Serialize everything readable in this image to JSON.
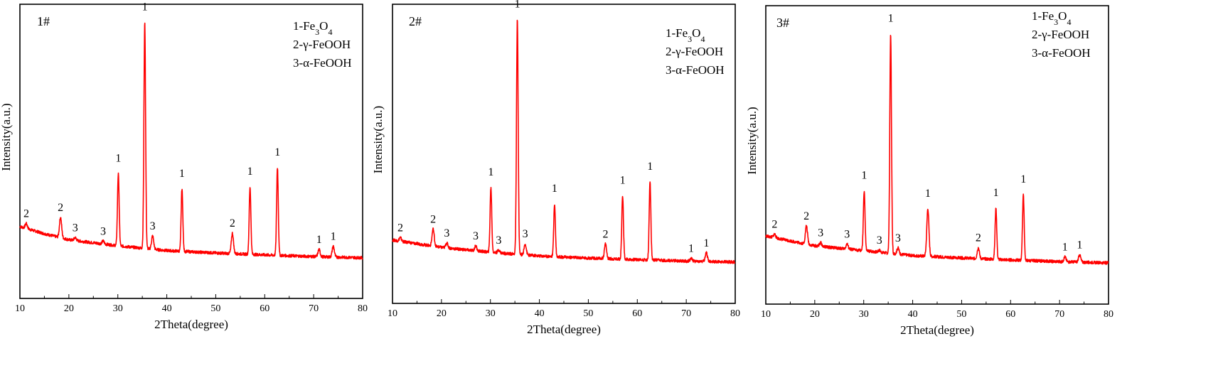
{
  "colors": {
    "pattern": "#ff0000",
    "frame": "#000000",
    "background": "#ffffff"
  },
  "chart_data": [
    {
      "type": "line",
      "panel_label": "1#",
      "xlabel": "2Theta(degree)",
      "ylabel": "Intensity(a.u.)",
      "xlim": [
        10,
        80
      ],
      "xticks": [
        "10",
        "20",
        "30",
        "40",
        "50",
        "60",
        "70",
        "80"
      ],
      "legend": [
        {
          "prefix": "1-Fe",
          "sub1": "3",
          "mid": "O",
          "sub2": "4"
        },
        {
          "prefix": "2-γ-FeOOH"
        },
        {
          "prefix": "3-α-FeOOH"
        }
      ],
      "background": [
        [
          10,
          0.14
        ],
        [
          15,
          0.11
        ],
        [
          20,
          0.085
        ],
        [
          30,
          0.06
        ],
        [
          40,
          0.04
        ],
        [
          50,
          0.03
        ],
        [
          60,
          0.022
        ],
        [
          70,
          0.015
        ],
        [
          80,
          0.01
        ]
      ],
      "peaks": [
        {
          "x": 11.3,
          "h": 0.02,
          "label": "2"
        },
        {
          "x": 18.3,
          "h": 0.085,
          "label": "2"
        },
        {
          "x": 21.3,
          "h": 0.012,
          "label": "3"
        },
        {
          "x": 27.0,
          "h": 0.012,
          "label": "3"
        },
        {
          "x": 30.1,
          "h": 0.3,
          "label": "1"
        },
        {
          "x": 35.5,
          "h": 0.94,
          "label": "1"
        },
        {
          "x": 37.1,
          "h": 0.055,
          "label": "3"
        },
        {
          "x": 43.1,
          "h": 0.26,
          "label": "1"
        },
        {
          "x": 53.4,
          "h": 0.085,
          "label": "2"
        },
        {
          "x": 57.0,
          "h": 0.28,
          "label": "1"
        },
        {
          "x": 62.6,
          "h": 0.365,
          "label": "1"
        },
        {
          "x": 71.1,
          "h": 0.03,
          "label": "1"
        },
        {
          "x": 74.0,
          "h": 0.045,
          "label": "1"
        }
      ]
    },
    {
      "type": "line",
      "panel_label": "2#",
      "xlabel": "2Theta(degree)",
      "ylabel": "Intensity(a.u.)",
      "xlim": [
        10,
        80
      ],
      "xticks": [
        "10",
        "20",
        "30",
        "40",
        "50",
        "60",
        "70",
        "80"
      ],
      "legend": [
        {
          "prefix": "1-Fe",
          "sub1": "3",
          "mid": "O",
          "sub2": "4"
        },
        {
          "prefix": "2-γ-FeOOH"
        },
        {
          "prefix": "3-α-FeOOH"
        }
      ],
      "background": [
        [
          10,
          0.1
        ],
        [
          15,
          0.085
        ],
        [
          20,
          0.07
        ],
        [
          30,
          0.05
        ],
        [
          40,
          0.035
        ],
        [
          50,
          0.026
        ],
        [
          60,
          0.02
        ],
        [
          70,
          0.014
        ],
        [
          80,
          0.01
        ]
      ],
      "peaks": [
        {
          "x": 11.6,
          "h": 0.015,
          "label": "2"
        },
        {
          "x": 18.3,
          "h": 0.07,
          "label": "2"
        },
        {
          "x": 21.1,
          "h": 0.02,
          "label": "3"
        },
        {
          "x": 27.0,
          "h": 0.02,
          "label": "3"
        },
        {
          "x": 30.1,
          "h": 0.265,
          "label": "1"
        },
        {
          "x": 31.7,
          "h": 0.012,
          "label": "3"
        },
        {
          "x": 35.5,
          "h": 0.96,
          "label": "1"
        },
        {
          "x": 37.1,
          "h": 0.045,
          "label": "3"
        },
        {
          "x": 43.1,
          "h": 0.215,
          "label": "1"
        },
        {
          "x": 53.5,
          "h": 0.06,
          "label": "2"
        },
        {
          "x": 57.0,
          "h": 0.26,
          "label": "1"
        },
        {
          "x": 62.6,
          "h": 0.32,
          "label": "1"
        },
        {
          "x": 71.0,
          "h": 0.012,
          "label": "1"
        },
        {
          "x": 74.1,
          "h": 0.035,
          "label": "1"
        }
      ]
    },
    {
      "type": "line",
      "panel_label": "3#",
      "xlabel": "2Theta(degree)",
      "ylabel": "Intensity(a.u.)",
      "xlim": [
        10,
        80
      ],
      "xticks": [
        "10",
        "20",
        "30",
        "40",
        "50",
        "60",
        "70",
        "80"
      ],
      "legend": [
        {
          "prefix": "1-Fe",
          "sub1": "3",
          "mid": "O",
          "sub2": "4"
        },
        {
          "prefix": "2-γ-FeOOH"
        },
        {
          "prefix": "3-α-FeOOH"
        }
      ],
      "background": [
        [
          10,
          0.12
        ],
        [
          15,
          0.1
        ],
        [
          20,
          0.08
        ],
        [
          30,
          0.06
        ],
        [
          40,
          0.04
        ],
        [
          50,
          0.03
        ],
        [
          60,
          0.022
        ],
        [
          70,
          0.015
        ],
        [
          80,
          0.01
        ]
      ],
      "peaks": [
        {
          "x": 11.8,
          "h": 0.015,
          "label": "2"
        },
        {
          "x": 18.3,
          "h": 0.075,
          "label": "2"
        },
        {
          "x": 21.2,
          "h": 0.015,
          "label": "3"
        },
        {
          "x": 26.6,
          "h": 0.02,
          "label": "3"
        },
        {
          "x": 30.1,
          "h": 0.245,
          "label": "1"
        },
        {
          "x": 33.2,
          "h": 0.008,
          "label": "3"
        },
        {
          "x": 35.5,
          "h": 0.9,
          "label": "1"
        },
        {
          "x": 37.0,
          "h": 0.025,
          "label": "3"
        },
        {
          "x": 43.1,
          "h": 0.195,
          "label": "1"
        },
        {
          "x": 53.4,
          "h": 0.045,
          "label": "2"
        },
        {
          "x": 57.0,
          "h": 0.21,
          "label": "1"
        },
        {
          "x": 62.6,
          "h": 0.27,
          "label": "1"
        },
        {
          "x": 71.1,
          "h": 0.02,
          "label": "1"
        },
        {
          "x": 74.1,
          "h": 0.03,
          "label": "1"
        }
      ]
    }
  ]
}
